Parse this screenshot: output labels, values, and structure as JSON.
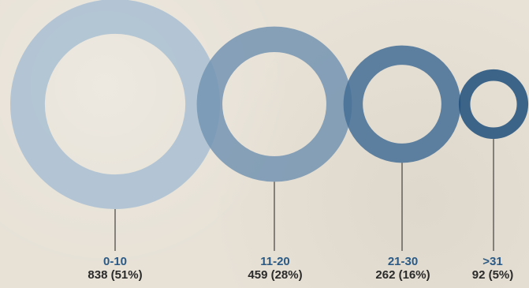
{
  "chart_data": {
    "type": "donut-bubbles",
    "title": "",
    "categories": [
      "0-10",
      "11-20",
      "21-30",
      ">31"
    ],
    "counts": [
      838,
      459,
      262,
      92
    ],
    "percents": [
      51,
      28,
      16,
      5
    ],
    "value_labels": [
      "838 (51%)",
      "459 (28%)",
      "262 (16%)",
      "92 (5%)"
    ],
    "colors": [
      "#a9bfd2",
      "#7394b1",
      "#446f96",
      "#1f4f7b"
    ]
  }
}
